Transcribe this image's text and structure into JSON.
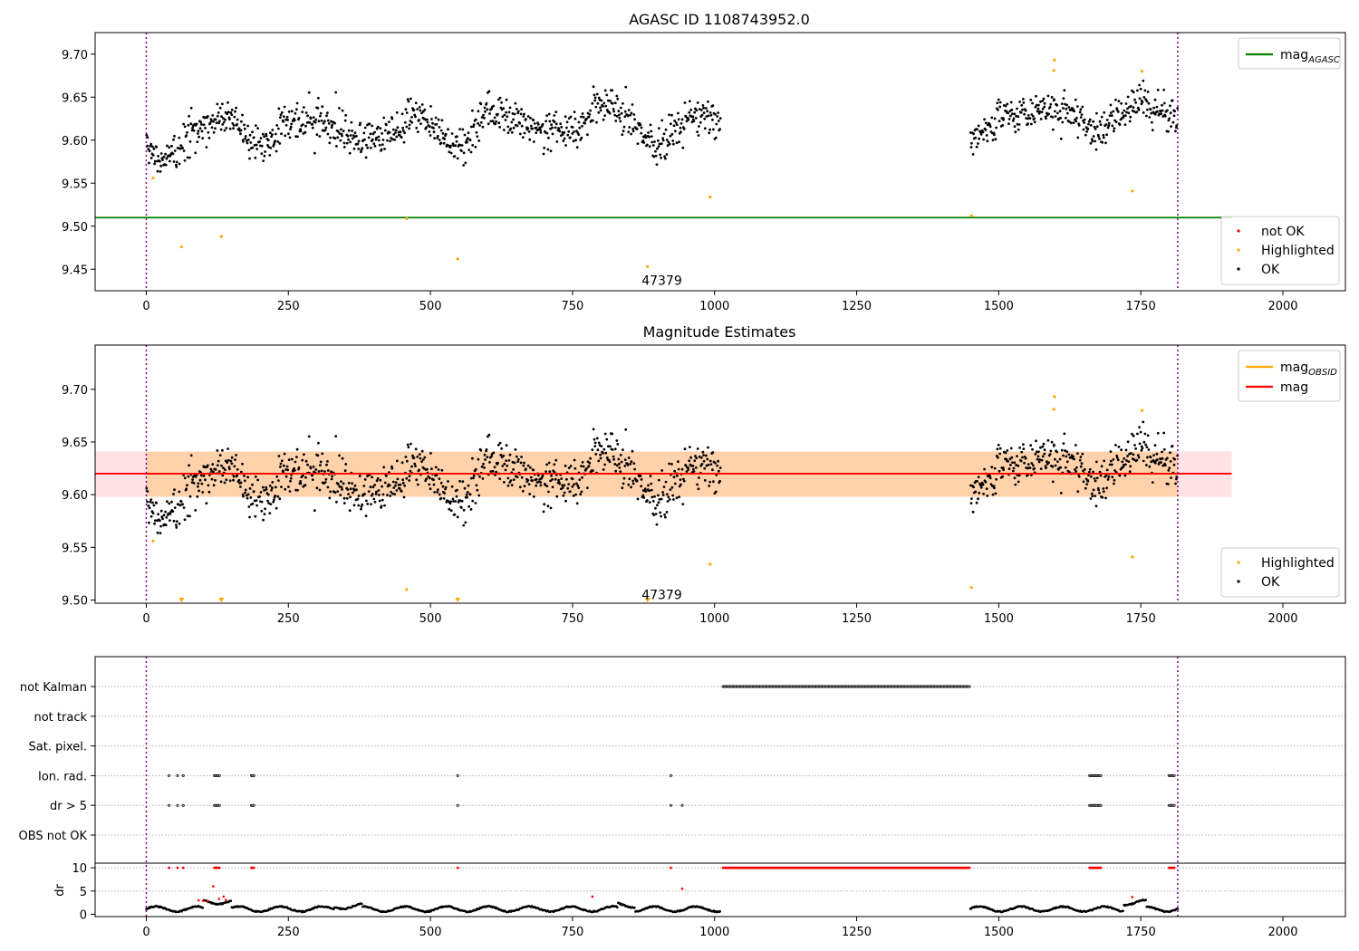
{
  "chart_data": [
    {
      "type": "scatter",
      "title": "AGASC ID 1108743952.0",
      "xlim": [
        -90,
        2110
      ],
      "ylim": [
        9.425,
        9.725
      ],
      "xticks": [
        0,
        250,
        500,
        750,
        1000,
        1250,
        1500,
        1750,
        2000
      ],
      "yticks": [
        9.45,
        9.5,
        9.55,
        9.6,
        9.65,
        9.7
      ],
      "ytick_labels": [
        "9.45",
        "9.50",
        "9.55",
        "9.60",
        "9.65",
        "9.70"
      ],
      "obs_boundaries": [
        0,
        1815
      ],
      "hline": {
        "y": 9.51,
        "x0": -90,
        "x1": 1910,
        "color": "#008000",
        "label": "mag",
        "label_sub": "AGASC"
      },
      "series": [
        {
          "name": "not OK",
          "color": "#ff0000",
          "values": []
        },
        {
          "name": "Highlighted",
          "color": "#ffa500",
          "points": [
            [
              12,
              9.556
            ],
            [
              62,
              9.476
            ],
            [
              132,
              9.488
            ],
            [
              458,
              9.509
            ],
            [
              548,
              9.462
            ],
            [
              882,
              9.453
            ],
            [
              992,
              9.534
            ],
            [
              1452,
              9.512
            ],
            [
              1597,
              9.681
            ],
            [
              1598,
              9.693
            ],
            [
              1735,
              9.541
            ],
            [
              1752,
              9.68
            ]
          ]
        },
        {
          "name": "OK",
          "color": "#000000",
          "seed": 7,
          "segments": [
            {
              "x0": 0,
              "x1": 1010,
              "profile": [
                [
                  0,
                  9.59
                ],
                [
                  20,
                  9.575
                ],
                [
                  50,
                  9.585
                ],
                [
                  80,
                  9.615
                ],
                [
                  110,
                  9.62
                ],
                [
                  150,
                  9.625
                ],
                [
                  180,
                  9.6
                ],
                [
                  215,
                  9.59
                ],
                [
                  250,
                  9.625
                ],
                [
                  300,
                  9.62
                ],
                [
                  340,
                  9.61
                ],
                [
                  380,
                  9.6
                ],
                [
                  430,
                  9.61
                ],
                [
                  470,
                  9.63
                ],
                [
                  520,
                  9.605
                ],
                [
                  560,
                  9.595
                ],
                [
                  600,
                  9.635
                ],
                [
                  650,
                  9.625
                ],
                [
                  700,
                  9.61
                ],
                [
                  760,
                  9.615
                ],
                [
                  800,
                  9.64
                ],
                [
                  840,
                  9.635
                ],
                [
                  880,
                  9.6
                ],
                [
                  900,
                  9.595
                ],
                [
                  940,
                  9.61
                ],
                [
                  960,
                  9.635
                ],
                [
                  1010,
                  9.62
                ]
              ]
            },
            {
              "x0": 1450,
              "x1": 1815,
              "profile": [
                [
                  1450,
                  9.605
                ],
                [
                  1500,
                  9.625
                ],
                [
                  1550,
                  9.63
                ],
                [
                  1600,
                  9.635
                ],
                [
                  1650,
                  9.625
                ],
                [
                  1670,
                  9.605
                ],
                [
                  1700,
                  9.625
                ],
                [
                  1750,
                  9.645
                ],
                [
                  1815,
                  9.625
                ]
              ]
            }
          ]
        }
      ],
      "annotations": [
        {
          "text": "47379",
          "x": 878,
          "y": 9.437
        }
      ],
      "legend_main": [
        {
          "label": "mag",
          "sub": "AGASC",
          "color": "#008000"
        }
      ],
      "legend_points": [
        "not OK",
        "Highlighted",
        "OK"
      ]
    },
    {
      "type": "scatter",
      "title": "Magnitude Estimates",
      "xlim": [
        -90,
        2110
      ],
      "ylim": [
        9.497,
        9.742
      ],
      "xticks": [
        0,
        250,
        500,
        750,
        1000,
        1250,
        1500,
        1750,
        2000
      ],
      "yticks": [
        9.5,
        9.55,
        9.6,
        9.65,
        9.7
      ],
      "ytick_labels": [
        "9.50",
        "9.55",
        "9.60",
        "9.65",
        "9.70"
      ],
      "obs_boundaries": [
        0,
        1815
      ],
      "bands": [
        {
          "x0": -90,
          "x1": 1910,
          "y0": 9.598,
          "y1": 9.641,
          "color": "#ffb6c1",
          "opacity": 0.4
        },
        {
          "x0": 0,
          "x1": 1815,
          "y0": 9.598,
          "y1": 9.641,
          "color": "#ffa500",
          "opacity": 0.25
        }
      ],
      "lines": [
        {
          "label": "mag",
          "sub": "OBSID",
          "color": "#ffa500",
          "x0": 0,
          "x1": 1815,
          "y": 9.62
        },
        {
          "label": "mag",
          "sub": "",
          "color": "#ff0000",
          "x0": -90,
          "x1": 1910,
          "y": 9.62
        }
      ],
      "series": [
        {
          "name": "Highlighted",
          "color": "#ffa500",
          "points": [
            [
              12,
              9.556
            ],
            [
              458,
              9.51
            ],
            [
              992,
              9.534
            ],
            [
              1452,
              9.512
            ],
            [
              1597,
              9.681
            ],
            [
              1598,
              9.693
            ],
            [
              1735,
              9.541
            ],
            [
              1752,
              9.68
            ]
          ],
          "clipped": [
            62,
            132,
            548,
            882
          ]
        },
        {
          "name": "OK",
          "color": "#000000",
          "seed": 7
        }
      ],
      "annotations": [
        {
          "text": "47379",
          "x": 878,
          "y": 9.505
        }
      ],
      "legend_main": [
        {
          "label": "mag",
          "sub": "OBSID",
          "color": "#ffa500"
        },
        {
          "label": "mag",
          "sub": "",
          "color": "#ff0000"
        }
      ],
      "legend_points": [
        "Highlighted",
        "OK"
      ]
    },
    {
      "type": "scatter",
      "xlim": [
        -90,
        2110
      ],
      "xticks": [
        0,
        250,
        500,
        750,
        1000,
        1250,
        1500,
        1750,
        2000
      ],
      "obs_boundaries": [
        0,
        1815
      ],
      "flag_rows": [
        "not Kalman",
        "not track",
        "Sat. pixel.",
        "Ion. rad.",
        "dr > 5",
        "OBS not OK"
      ],
      "flags": {
        "not Kalman": [
          [
            1015,
            1450
          ]
        ],
        "not track": [],
        "Sat. pixel.": [],
        "Ion. rad.": [
          [
            40,
            42
          ],
          [
            55,
            57
          ],
          [
            65,
            67
          ],
          [
            120,
            130
          ],
          [
            185,
            190
          ],
          [
            548,
            549
          ],
          [
            923,
            924
          ],
          [
            1660,
            1680
          ],
          [
            1800,
            1810
          ]
        ],
        "dr > 5": [
          [
            40,
            42
          ],
          [
            55,
            57
          ],
          [
            65,
            67
          ],
          [
            120,
            130
          ],
          [
            185,
            190
          ],
          [
            548,
            549
          ],
          [
            923,
            924
          ],
          [
            943,
            944
          ],
          [
            1660,
            1680
          ],
          [
            1800,
            1810
          ]
        ],
        "OBS not OK": []
      },
      "dr": {
        "ylabel": "dr",
        "ylim": [
          -0.5,
          11
        ],
        "yticks": [
          0,
          5,
          10
        ],
        "ytick_labels": [
          "0",
          "5",
          "10"
        ],
        "segments": [
          [
            0,
            1010
          ],
          [
            1450,
            1815
          ]
        ],
        "bad_ranges": [
          [
            40,
            42
          ],
          [
            55,
            57
          ],
          [
            65,
            67
          ],
          [
            120,
            130
          ],
          [
            185,
            190
          ],
          [
            548,
            549
          ],
          [
            923,
            924
          ],
          [
            1015,
            1450
          ],
          [
            1660,
            1680
          ],
          [
            1800,
            1810
          ]
        ],
        "bad_points": [
          [
            92,
            3.0
          ],
          [
            100,
            2.9
          ],
          [
            108,
            2.8
          ],
          [
            118,
            6.0
          ],
          [
            128,
            3.3
          ],
          [
            136,
            3.8
          ],
          [
            140,
            3.1
          ],
          [
            785,
            3.8
          ],
          [
            943,
            5.5
          ],
          [
            1735,
            3.7
          ]
        ]
      }
    }
  ]
}
